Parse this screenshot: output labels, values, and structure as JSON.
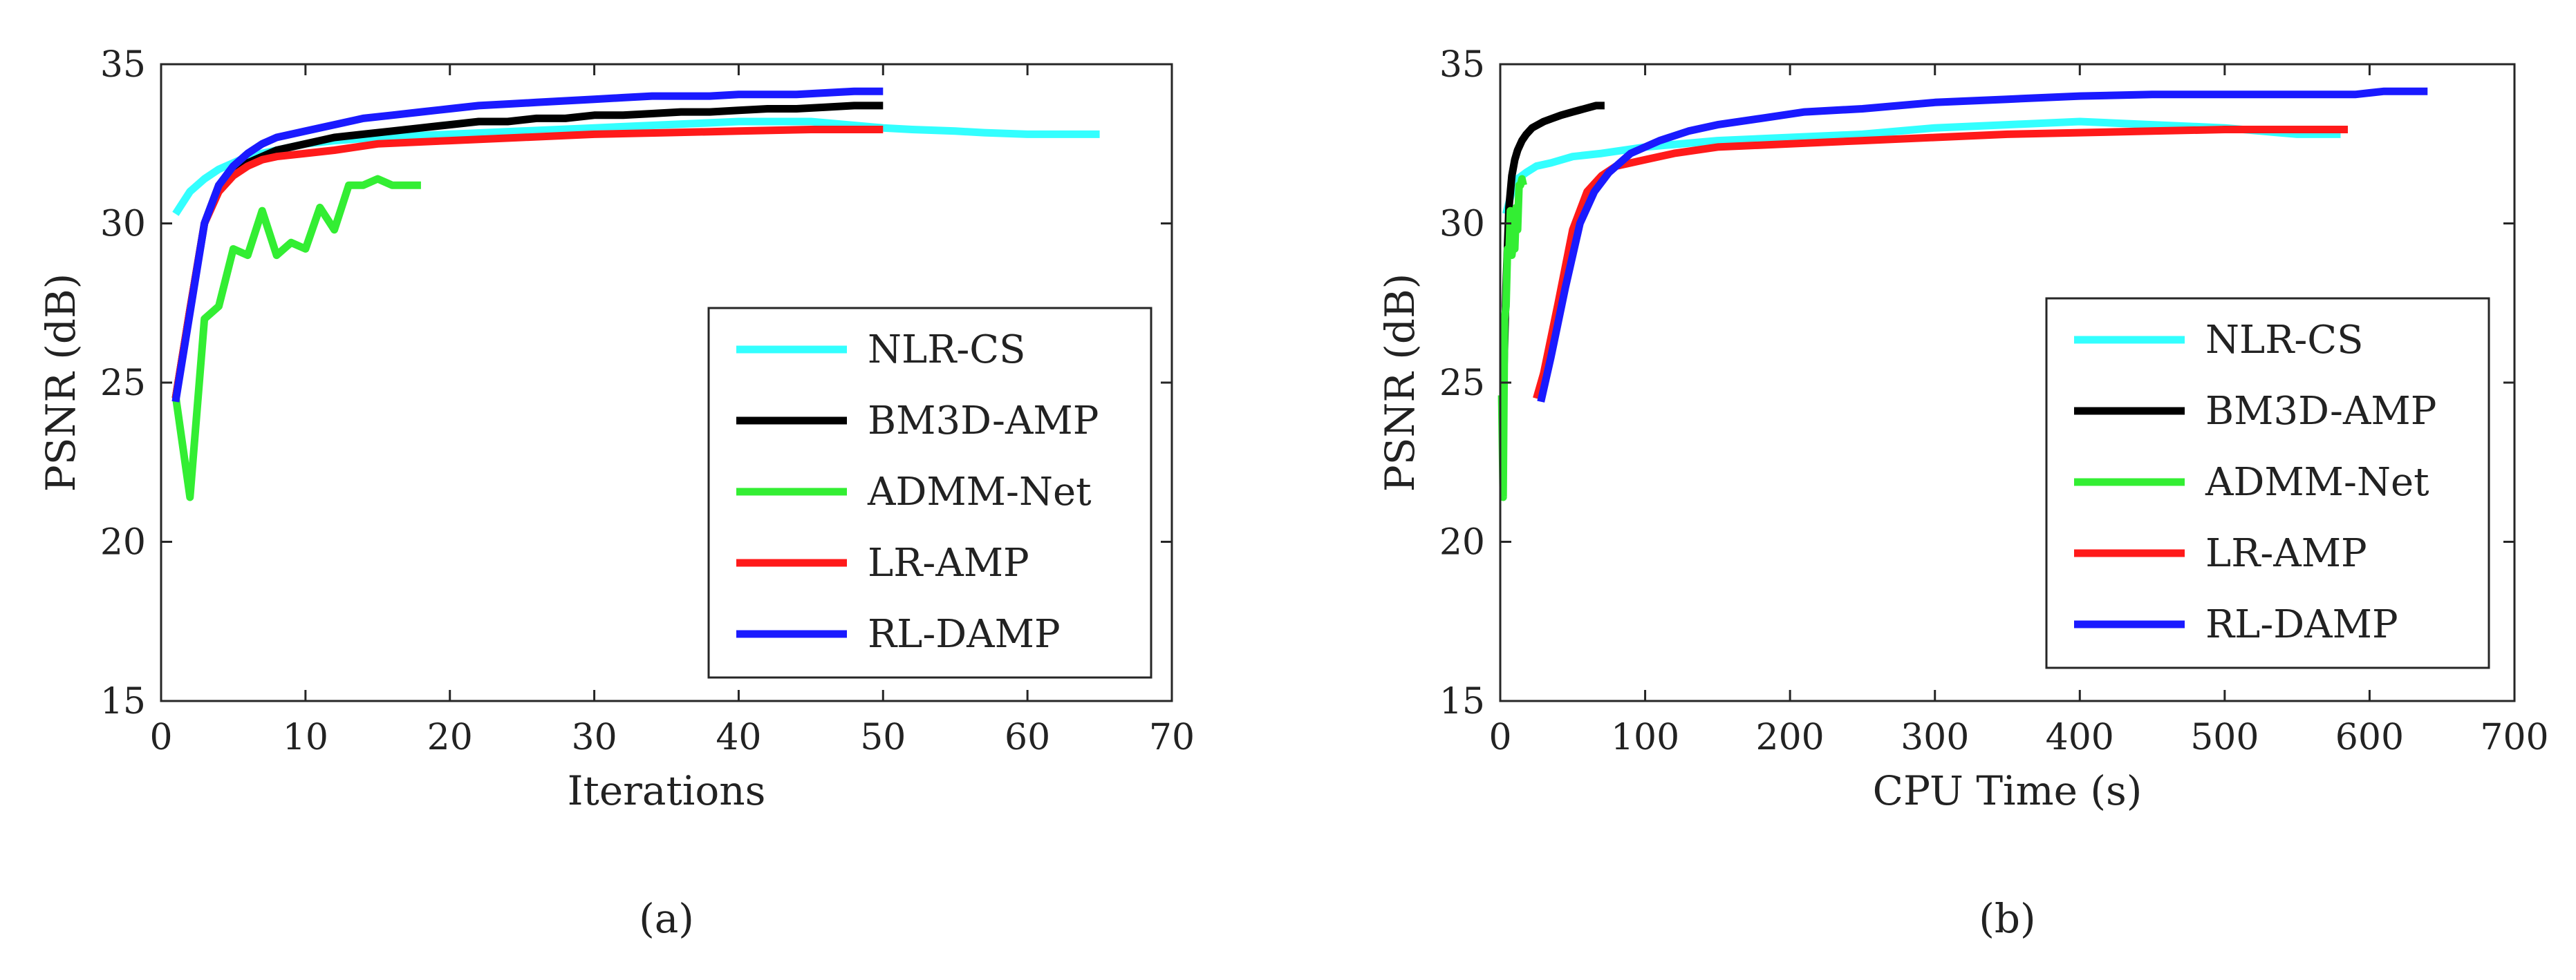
{
  "chart_data": [
    {
      "id": "a",
      "type": "line",
      "caption": "(a)",
      "xlabel": "Iterations",
      "ylabel": "PSNR (dB)",
      "xlim": [
        0,
        70
      ],
      "ylim": [
        15,
        35
      ],
      "xticks": [
        0,
        10,
        20,
        30,
        40,
        50,
        60,
        70
      ],
      "yticks": [
        15,
        20,
        25,
        30,
        35
      ],
      "legend_position": "lower-right",
      "series": [
        {
          "name": "NLR-CS",
          "color": "#33ffff",
          "x": [
            1,
            2,
            3,
            4,
            5,
            6,
            8,
            10,
            12,
            15,
            20,
            25,
            30,
            35,
            40,
            45,
            50,
            52,
            55,
            57,
            60,
            65
          ],
          "y": [
            30.3,
            31.0,
            31.4,
            31.7,
            31.9,
            32.1,
            32.3,
            32.5,
            32.6,
            32.7,
            32.8,
            32.9,
            33.0,
            33.1,
            33.2,
            33.2,
            33.0,
            32.95,
            32.9,
            32.85,
            32.8,
            32.8
          ]
        },
        {
          "name": "BM3D-AMP",
          "color": "#000000",
          "x": [
            1,
            2,
            3,
            4,
            5,
            6,
            7,
            8,
            10,
            12,
            14,
            16,
            18,
            20,
            22,
            24,
            26,
            28,
            30,
            32,
            34,
            36,
            38,
            40,
            42,
            44,
            46,
            48,
            49,
            50
          ],
          "y": [
            24.5,
            27.3,
            30.0,
            31.2,
            31.6,
            31.9,
            32.1,
            32.3,
            32.5,
            32.7,
            32.8,
            32.9,
            33.0,
            33.1,
            33.2,
            33.2,
            33.3,
            33.3,
            33.4,
            33.4,
            33.45,
            33.5,
            33.5,
            33.55,
            33.6,
            33.6,
            33.65,
            33.7,
            33.7,
            33.7
          ]
        },
        {
          "name": "ADMM-Net",
          "color": "#33ee33",
          "x": [
            1,
            2,
            3,
            4,
            5,
            6,
            7,
            8,
            9,
            10,
            11,
            12,
            13,
            14,
            15,
            16,
            17,
            18
          ],
          "y": [
            24.6,
            21.4,
            27.0,
            27.4,
            29.2,
            29.0,
            30.4,
            29.0,
            29.4,
            29.2,
            30.5,
            29.8,
            31.2,
            31.2,
            31.4,
            31.2,
            31.2,
            31.2
          ]
        },
        {
          "name": "LR-AMP",
          "color": "#ff1a1a",
          "x": [
            1,
            2,
            3,
            4,
            5,
            6,
            7,
            8,
            10,
            12,
            15,
            20,
            25,
            30,
            35,
            40,
            45,
            50
          ],
          "y": [
            24.5,
            27.3,
            30.0,
            31.0,
            31.5,
            31.8,
            32.0,
            32.1,
            32.2,
            32.3,
            32.5,
            32.6,
            32.7,
            32.8,
            32.85,
            32.9,
            32.95,
            32.95
          ]
        },
        {
          "name": "RL-DAMP",
          "color": "#1a1aff",
          "x": [
            1,
            2,
            3,
            4,
            5,
            6,
            7,
            8,
            10,
            12,
            14,
            16,
            18,
            20,
            22,
            24,
            26,
            28,
            30,
            32,
            34,
            36,
            38,
            40,
            42,
            44,
            46,
            48,
            50
          ],
          "y": [
            24.4,
            27.2,
            30.0,
            31.2,
            31.8,
            32.2,
            32.5,
            32.7,
            32.9,
            33.1,
            33.3,
            33.4,
            33.5,
            33.6,
            33.7,
            33.75,
            33.8,
            33.85,
            33.9,
            33.95,
            34.0,
            34.0,
            34.0,
            34.05,
            34.05,
            34.05,
            34.1,
            34.15,
            34.15
          ]
        }
      ]
    },
    {
      "id": "b",
      "type": "line",
      "caption": "(b)",
      "xlabel": "CPU Time (s)",
      "ylabel": "PSNR (dB)",
      "xlim": [
        0,
        700
      ],
      "ylim": [
        15,
        35
      ],
      "xticks": [
        0,
        100,
        200,
        300,
        400,
        500,
        600,
        700
      ],
      "yticks": [
        15,
        20,
        25,
        30,
        35
      ],
      "legend_position": "lower-right",
      "series": [
        {
          "name": "NLR-CS",
          "color": "#33ffff",
          "x": [
            4,
            8,
            12,
            18,
            25,
            35,
            50,
            70,
            100,
            150,
            200,
            250,
            300,
            350,
            400,
            450,
            500,
            550,
            580
          ],
          "y": [
            30.3,
            31.0,
            31.4,
            31.6,
            31.8,
            31.9,
            32.1,
            32.2,
            32.4,
            32.6,
            32.7,
            32.8,
            33.0,
            33.1,
            33.2,
            33.1,
            33.0,
            32.8,
            32.8
          ]
        },
        {
          "name": "BM3D-AMP",
          "color": "#000000",
          "x": [
            2,
            4,
            6,
            8,
            10,
            12,
            15,
            18,
            22,
            26,
            30,
            36,
            42,
            50,
            58,
            66,
            72
          ],
          "y": [
            24.5,
            28.0,
            30.5,
            31.5,
            32.0,
            32.3,
            32.6,
            32.8,
            33.0,
            33.1,
            33.2,
            33.3,
            33.4,
            33.5,
            33.6,
            33.7,
            33.7
          ]
        },
        {
          "name": "ADMM-Net",
          "color": "#33ee33",
          "x": [
            1,
            2,
            3,
            4,
            5,
            6,
            7,
            8,
            9,
            10,
            11,
            12,
            13,
            14,
            15,
            16
          ],
          "y": [
            24.6,
            21.4,
            27.0,
            27.4,
            29.2,
            29.0,
            30.4,
            29.0,
            29.4,
            29.2,
            30.5,
            29.8,
            31.2,
            31.2,
            31.4,
            31.2
          ]
        },
        {
          "name": "LR-AMP",
          "color": "#ff1a1a",
          "x": [
            25,
            30,
            40,
            50,
            60,
            70,
            80,
            100,
            120,
            150,
            200,
            250,
            300,
            350,
            400,
            450,
            500,
            550,
            585
          ],
          "y": [
            24.5,
            25.3,
            27.5,
            29.8,
            31.0,
            31.5,
            31.8,
            32.0,
            32.2,
            32.4,
            32.5,
            32.6,
            32.7,
            32.8,
            32.85,
            32.9,
            32.95,
            32.95,
            32.95
          ]
        },
        {
          "name": "RL-DAMP",
          "color": "#1a1aff",
          "x": [
            28,
            35,
            45,
            55,
            65,
            75,
            90,
            110,
            130,
            150,
            180,
            210,
            250,
            300,
            350,
            400,
            450,
            500,
            550,
            590,
            610,
            640
          ],
          "y": [
            24.4,
            25.8,
            28.0,
            30.0,
            31.0,
            31.6,
            32.2,
            32.6,
            32.9,
            33.1,
            33.3,
            33.5,
            33.6,
            33.8,
            33.9,
            34.0,
            34.05,
            34.05,
            34.05,
            34.05,
            34.15,
            34.15
          ]
        }
      ]
    }
  ]
}
